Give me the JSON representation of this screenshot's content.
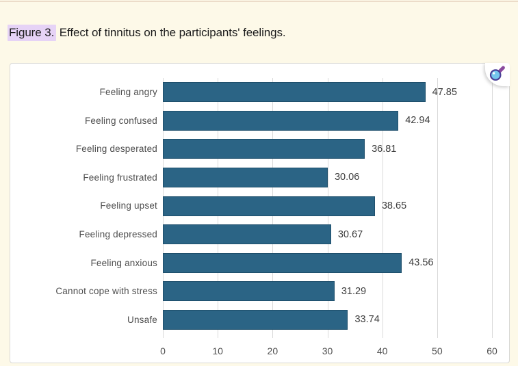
{
  "page": {
    "background_color": "#fdf9e8",
    "top_rule_color": "#ecdcc9"
  },
  "caption": {
    "label": "Figure 3.",
    "label_highlight_color": "#e6d3f6",
    "text": " Effect of tinnitus on the participants' feelings."
  },
  "zoom_control": {
    "icon": "magnifier-icon",
    "lens_color": "#74c6ec",
    "rim_color": "#4a3f96",
    "handle_color": "#8a4a9e"
  },
  "chart_data": {
    "type": "bar",
    "orientation": "horizontal",
    "title": "",
    "categories": [
      "Feeling angry",
      "Feeling confused",
      "Feeling desperated",
      "Feeling frustrated",
      "Feeling upset",
      "Feeling depressed",
      "Feeling anxious",
      "Cannot cope with stress",
      "Unsafe"
    ],
    "values": [
      47.85,
      42.94,
      36.81,
      30.06,
      38.65,
      30.67,
      43.56,
      31.29,
      33.74
    ],
    "value_labels": [
      "47.85",
      "42.94",
      "36.81",
      "30.06",
      "38.65",
      "30.67",
      "43.56",
      "31.29",
      "33.74"
    ],
    "xlabel": "",
    "ylabel": "",
    "xlim": [
      0,
      60
    ],
    "xticks": [
      0,
      10,
      20,
      30,
      40,
      50,
      60
    ],
    "grid": "vertical",
    "legend": "none",
    "bar_color": "#2b6485",
    "bar_border_color": "#1e4f6c",
    "grid_color": "#d9d9d9",
    "tick_label_color": "#4f4f4f",
    "category_label_color": "#4d4d4d",
    "value_label_color": "#3c3c3c"
  }
}
